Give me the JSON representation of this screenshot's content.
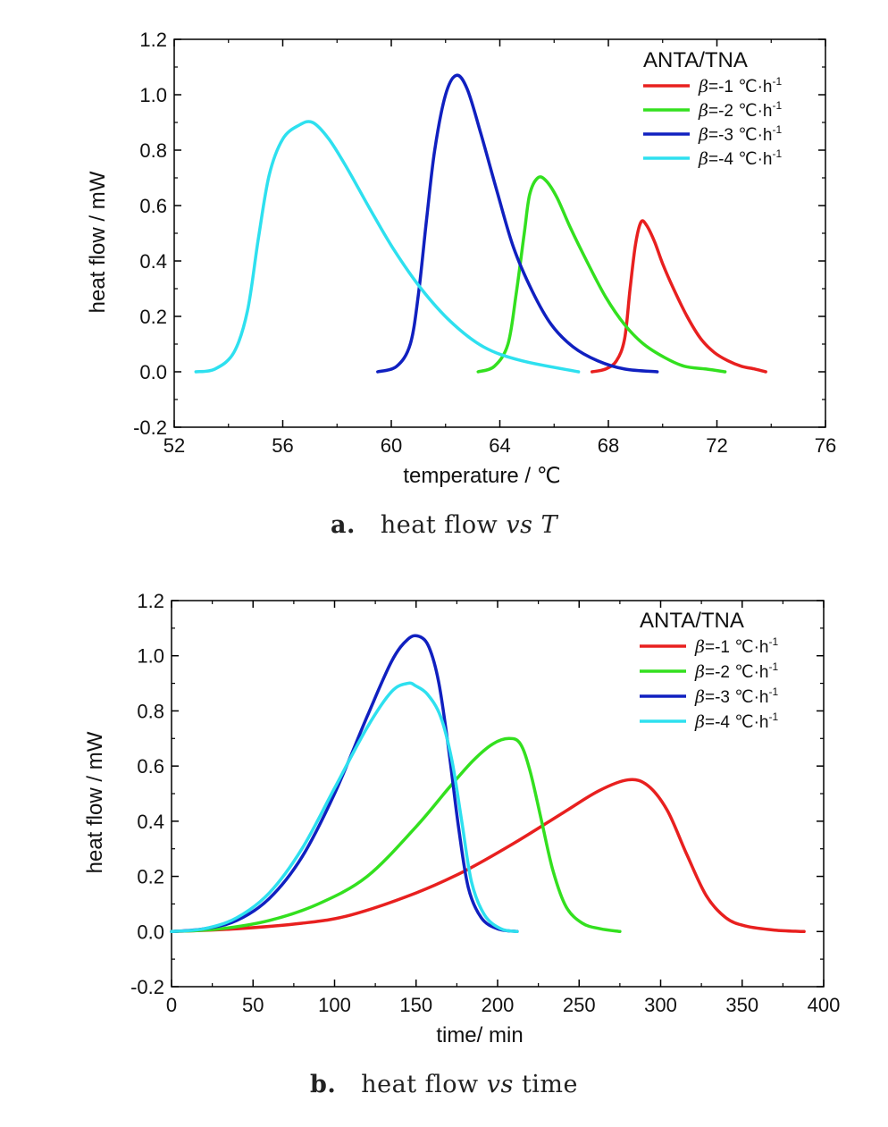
{
  "chart_data": [
    {
      "type": "line",
      "xlabel": "temperature / ℃",
      "ylabel": "heat flow / mW",
      "xlim": [
        52,
        76
      ],
      "ylim": [
        -0.2,
        1.2
      ],
      "xticks": [
        "52",
        "56",
        "60",
        "64",
        "68",
        "72",
        "76"
      ],
      "yticks": [
        "-0.2",
        "0.0",
        "0.2",
        "0.4",
        "0.6",
        "0.8",
        "1.0",
        "1.2"
      ],
      "legend_title": "ANTA/TNA",
      "legend_position": "top-right",
      "grid": false,
      "series": [
        {
          "name": "β=-1 ℃·h⁻¹",
          "legend_beta": "β",
          "legend_rest": "=-1 ℃·h",
          "legend_sup": "-1",
          "color": "#e8201f",
          "x": [
            67.4,
            67.9,
            68.3,
            68.6,
            68.8,
            69.0,
            69.2,
            69.4,
            69.7,
            70.0,
            70.4,
            70.9,
            71.4,
            71.9,
            72.4,
            72.9,
            73.4,
            73.8
          ],
          "y": [
            0.0,
            0.01,
            0.04,
            0.12,
            0.3,
            0.46,
            0.54,
            0.53,
            0.47,
            0.39,
            0.3,
            0.2,
            0.12,
            0.07,
            0.04,
            0.02,
            0.01,
            0.0
          ]
        },
        {
          "name": "β=-2 ℃·h⁻¹",
          "legend_beta": "β",
          "legend_rest": "=-2 ℃·h",
          "legend_sup": "-1",
          "color": "#33e01f",
          "x": [
            63.2,
            63.8,
            64.3,
            64.6,
            64.9,
            65.1,
            65.4,
            65.7,
            66.1,
            66.6,
            67.2,
            67.9,
            68.6,
            69.3,
            70.1,
            70.8,
            71.6,
            72.3
          ],
          "y": [
            0.0,
            0.02,
            0.1,
            0.28,
            0.5,
            0.64,
            0.7,
            0.69,
            0.63,
            0.52,
            0.4,
            0.27,
            0.17,
            0.1,
            0.05,
            0.02,
            0.01,
            0.0
          ]
        },
        {
          "name": "β=-3 ℃·h⁻¹",
          "legend_beta": "β",
          "legend_rest": "=-3 ℃·h",
          "legend_sup": "-1",
          "color": "#1020c0",
          "x": [
            59.5,
            60.2,
            60.7,
            61.0,
            61.3,
            61.6,
            62.0,
            62.4,
            62.8,
            63.3,
            63.9,
            64.5,
            65.2,
            65.9,
            66.7,
            67.6,
            68.6,
            69.8
          ],
          "y": [
            0.0,
            0.02,
            0.1,
            0.28,
            0.55,
            0.8,
            1.0,
            1.07,
            1.02,
            0.86,
            0.65,
            0.45,
            0.29,
            0.17,
            0.09,
            0.04,
            0.01,
            0.0
          ]
        },
        {
          "name": "β=-4 ℃·h⁻¹",
          "legend_beta": "β",
          "legend_rest": "=-4 ℃·h",
          "legend_sup": "-1",
          "color": "#2ee0ef",
          "x": [
            52.8,
            53.5,
            54.2,
            54.7,
            55.1,
            55.5,
            56.0,
            56.6,
            57.1,
            57.7,
            58.4,
            59.2,
            60.1,
            61.1,
            62.2,
            63.4,
            64.8,
            66.9
          ],
          "y": [
            0.0,
            0.01,
            0.07,
            0.22,
            0.48,
            0.71,
            0.84,
            0.89,
            0.9,
            0.84,
            0.73,
            0.59,
            0.44,
            0.3,
            0.18,
            0.09,
            0.04,
            0.0
          ]
        }
      ]
    },
    {
      "type": "line",
      "xlabel": "time/ min",
      "ylabel": "heat flow / mW",
      "xlim": [
        0,
        400
      ],
      "ylim": [
        -0.2,
        1.2
      ],
      "xticks": [
        "0",
        "50",
        "100",
        "150",
        "200",
        "250",
        "300",
        "350",
        "400"
      ],
      "yticks": [
        "-0.2",
        "0.0",
        "0.2",
        "0.4",
        "0.6",
        "0.8",
        "1.0",
        "1.2"
      ],
      "legend_title": "ANTA/TNA",
      "legend_position": "top-right",
      "grid": false,
      "series": [
        {
          "name": "β=-1 ℃·h⁻¹",
          "legend_beta": "β",
          "legend_rest": "=-1 ℃·h",
          "legend_sup": "-1",
          "color": "#e8201f",
          "x": [
            0,
            40,
            80,
            110,
            150,
            180,
            210,
            240,
            262,
            280,
            292,
            304,
            316,
            328,
            340,
            352,
            370,
            388
          ],
          "y": [
            0.0,
            0.01,
            0.03,
            0.06,
            0.14,
            0.22,
            0.32,
            0.43,
            0.51,
            0.55,
            0.53,
            0.44,
            0.28,
            0.13,
            0.05,
            0.02,
            0.005,
            0.0
          ]
        },
        {
          "name": "β=-2 ℃·h⁻¹",
          "legend_beta": "β",
          "legend_rest": "=-2 ℃·h",
          "legend_sup": "-1",
          "color": "#33e01f",
          "x": [
            0,
            30,
            60,
            90,
            120,
            150,
            170,
            185,
            197,
            207,
            214,
            220,
            227,
            234,
            242,
            252,
            263,
            275
          ],
          "y": [
            0.0,
            0.01,
            0.04,
            0.1,
            0.2,
            0.38,
            0.52,
            0.62,
            0.68,
            0.7,
            0.68,
            0.58,
            0.4,
            0.22,
            0.09,
            0.03,
            0.01,
            0.0
          ]
        },
        {
          "name": "β=-3 ℃·h⁻¹",
          "legend_beta": "β",
          "legend_rest": "=-3 ℃·h",
          "legend_sup": "-1",
          "color": "#1020c0",
          "x": [
            0,
            20,
            40,
            60,
            80,
            100,
            120,
            135,
            145,
            152,
            158,
            164,
            170,
            176,
            182,
            190,
            200,
            212
          ],
          "y": [
            0.0,
            0.01,
            0.04,
            0.12,
            0.27,
            0.5,
            0.78,
            0.98,
            1.06,
            1.07,
            1.03,
            0.9,
            0.66,
            0.38,
            0.16,
            0.05,
            0.01,
            0.0
          ]
        },
        {
          "name": "β=-4 ℃·h⁻¹",
          "legend_beta": "β",
          "legend_rest": "=-4 ℃·h",
          "legend_sup": "-1",
          "color": "#2ee0ef",
          "x": [
            0,
            20,
            40,
            60,
            80,
            100,
            120,
            135,
            145,
            150,
            157,
            165,
            172,
            178,
            184,
            192,
            202,
            212
          ],
          "y": [
            0.0,
            0.01,
            0.05,
            0.14,
            0.3,
            0.52,
            0.74,
            0.87,
            0.9,
            0.89,
            0.86,
            0.78,
            0.62,
            0.4,
            0.18,
            0.06,
            0.01,
            0.0
          ]
        }
      ]
    }
  ],
  "captions": [
    {
      "letter": "a.",
      "prefix": "heat flow ",
      "vs": "vs",
      "suffix": " T",
      "suffix_italic": true
    },
    {
      "letter": "b.",
      "prefix": "heat flow ",
      "vs": "vs",
      "suffix": " time",
      "suffix_italic": false
    }
  ]
}
